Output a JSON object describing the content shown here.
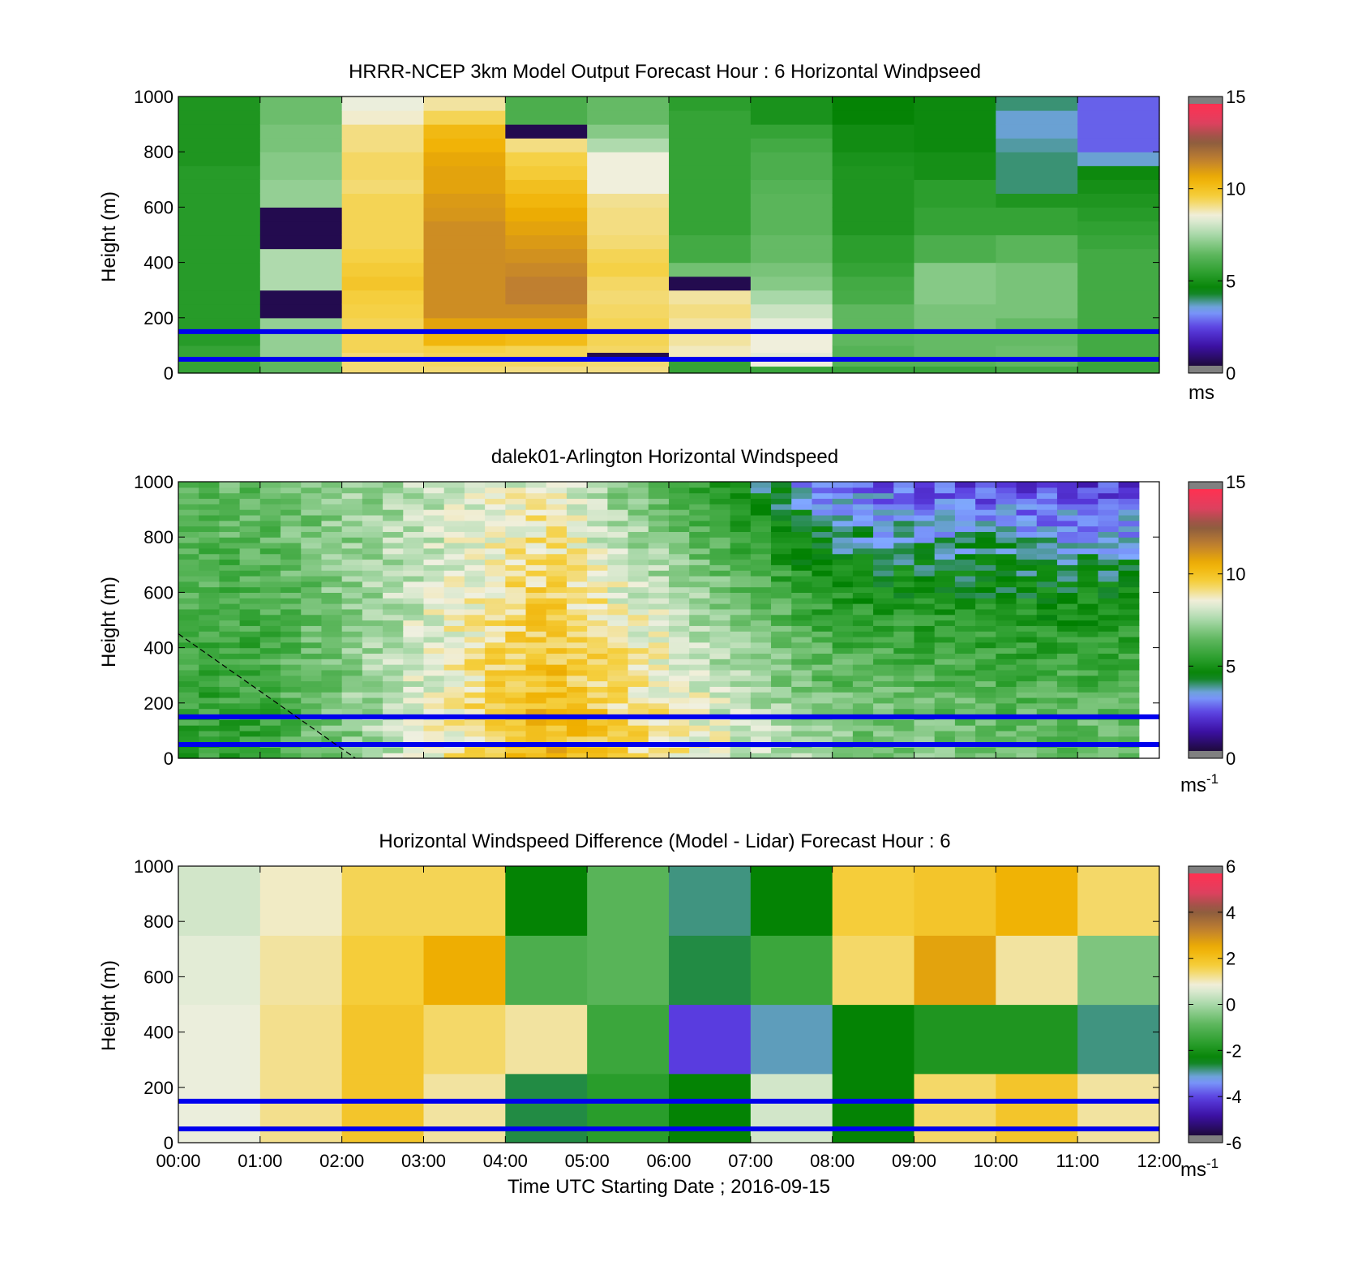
{
  "figure": {
    "xlabel": "Time UTC  Starting Date ; 2016-09-15",
    "x_tick_labels": [
      "00:00",
      "01:00",
      "02:00",
      "03:00",
      "04:00",
      "05:00",
      "06:00",
      "07:00",
      "08:00",
      "09:00",
      "10:00",
      "11:00",
      "12:00"
    ],
    "colors": {
      "reference_line": "#0000ee",
      "colormap": [
        "#1e0a3c",
        "#3a0fa0",
        "#5a3de0",
        "#80a8ff",
        "#008000",
        "#2ea030",
        "#60b860",
        "#a8d8a8",
        "#f0f0e0",
        "#f5d040",
        "#f0b000",
        "#c08030",
        "#8a5a40",
        "#e04060",
        "#ff3050"
      ]
    }
  },
  "chart_data": [
    {
      "type": "heatmap",
      "title": "HRRR-NCEP 3km Model Output   Forecast Hour : 6 Horizontal Windpseed",
      "ylabel": "Height (m)",
      "xlim": [
        "00:00",
        "12:00"
      ],
      "ylim": [
        0,
        1000
      ],
      "y_ticks": [
        0,
        200,
        400,
        600,
        800,
        1000
      ],
      "x_tick_labels_shown": false,
      "grid": false,
      "colorbar": {
        "range": [
          0,
          15
        ],
        "ticks": [
          0,
          5,
          10,
          15
        ],
        "label": "ms"
      },
      "reference_lines_height_m": [
        50,
        150
      ],
      "column_starts": [
        "00:00",
        "01:00",
        "02:00",
        "03:00",
        "04:00",
        "05:00",
        "06:00",
        "07:00",
        "08:00",
        "09:00",
        "10:00",
        "11:00"
      ],
      "height_levels_m": [
        0,
        25,
        50,
        75,
        100,
        150,
        200,
        250,
        300,
        350,
        400,
        450,
        500,
        550,
        600,
        650,
        700,
        750,
        800,
        850,
        900,
        950
      ],
      "windspeed_ms_by_hour": [
        [
          5.5,
          5.5,
          5.5,
          5.5,
          5.2,
          5.2,
          5.2,
          5.2,
          5.2,
          5.2,
          5.2,
          5.2,
          5.2,
          5.2,
          5.2,
          5.2,
          5.2,
          5.0,
          5.0,
          5.0,
          5.0,
          5.0
        ],
        [
          6.4,
          6.4,
          7.2,
          7.2,
          7.2,
          7.2,
          0.2,
          0.2,
          7.6,
          7.6,
          7.6,
          0.2,
          0.2,
          0.2,
          7.2,
          7.2,
          7.0,
          7.0,
          6.8,
          6.8,
          6.6,
          6.6
        ],
        [
          9.3,
          9.3,
          9.3,
          9.5,
          9.5,
          9.5,
          9.6,
          9.7,
          10.0,
          9.8,
          9.6,
          9.5,
          9.5,
          9.5,
          9.5,
          9.3,
          9.4,
          9.4,
          9.2,
          9.2,
          8.7,
          8.5
        ],
        [
          9.3,
          9.4,
          9.5,
          9.6,
          10.5,
          11.0,
          11.5,
          11.5,
          11.5,
          11.5,
          11.5,
          11.5,
          11.5,
          11.3,
          11.2,
          11.0,
          11.0,
          10.9,
          10.6,
          10.4,
          9.5,
          9.0
        ],
        [
          9.2,
          9.4,
          9.5,
          9.5,
          10.3,
          11.0,
          11.5,
          11.8,
          11.8,
          11.6,
          11.4,
          11.2,
          11.0,
          10.8,
          10.5,
          10.2,
          9.8,
          9.6,
          9.2,
          0.2,
          6.0,
          6.0
        ],
        [
          9.2,
          9.3,
          0.2,
          9.4,
          9.5,
          9.5,
          9.4,
          9.3,
          9.4,
          9.6,
          9.5,
          9.3,
          9.2,
          9.2,
          9.1,
          8.6,
          8.6,
          8.6,
          7.6,
          7.0,
          6.5,
          6.5
        ],
        [
          5.5,
          5.5,
          8.8,
          8.8,
          9.0,
          9.0,
          9.2,
          9.0,
          0.2,
          6.7,
          5.8,
          5.8,
          5.5,
          5.5,
          5.5,
          5.5,
          5.5,
          5.5,
          5.5,
          5.5,
          5.5,
          5.3
        ],
        [
          5.6,
          8.6,
          8.4,
          8.6,
          8.6,
          8.4,
          8.0,
          7.5,
          7.0,
          6.8,
          6.5,
          6.5,
          6.3,
          6.3,
          6.3,
          6.2,
          6.0,
          6.0,
          5.8,
          5.5,
          4.9,
          4.9
        ],
        [
          5.6,
          6.2,
          6.2,
          6.2,
          6.4,
          6.4,
          6.4,
          5.9,
          5.8,
          5.5,
          5.3,
          5.3,
          5.0,
          5.0,
          5.0,
          5.0,
          5.0,
          4.9,
          4.7,
          4.7,
          4.4,
          4.4
        ],
        [
          5.6,
          6.2,
          6.5,
          6.5,
          6.5,
          6.8,
          6.8,
          7.0,
          7.0,
          7.0,
          6.0,
          6.0,
          5.5,
          5.5,
          5.3,
          5.3,
          4.8,
          4.8,
          4.6,
          4.6,
          4.6,
          4.6
        ],
        [
          5.8,
          6.4,
          6.6,
          6.6,
          6.5,
          6.5,
          6.8,
          6.8,
          6.8,
          6.8,
          6.3,
          6.3,
          5.5,
          5.5,
          5.0,
          3.8,
          3.8,
          3.8,
          3.6,
          3.4,
          3.4,
          3.8
        ],
        [
          5.6,
          5.6,
          5.8,
          5.8,
          5.8,
          5.8,
          5.8,
          5.8,
          5.8,
          5.8,
          5.8,
          5.6,
          5.4,
          5.2,
          5.0,
          4.8,
          4.6,
          3.4,
          2.5,
          2.5,
          2.5,
          2.5
        ]
      ]
    },
    {
      "type": "heatmap",
      "title": "dalek01-Arlington  Horizontal Windspeed",
      "ylabel": "Height (m)",
      "xlim": [
        "00:00",
        "12:00"
      ],
      "ylim": [
        0,
        1000
      ],
      "y_ticks": [
        0,
        200,
        400,
        600,
        800,
        1000
      ],
      "x_tick_labels_shown": false,
      "grid": false,
      "colorbar": {
        "range": [
          0,
          15
        ],
        "ticks": [
          0,
          5,
          10,
          15
        ],
        "label": "ms",
        "label_exponent": "-1"
      },
      "reference_lines_height_m": [
        50,
        150
      ],
      "annotation": "dashed diagonal line from about 450 m at 00:00 to 0 m at about 02:10",
      "annotation_line": [
        [
          "00:00",
          450
        ],
        [
          "02:10",
          0
        ]
      ],
      "sampling": "lidar profiles every 15 minutes from 00:00 to about 11:45, plotted as fine vertical columns",
      "regime_summary": [
        {
          "from": "00:00",
          "to": "02:00",
          "lower_ms": 5.5,
          "upper_ms": 6.5
        },
        {
          "from": "02:00",
          "to": "07:00",
          "lower_ms": 10.5,
          "upper_ms": 8.5
        },
        {
          "from": "07:00",
          "to": "09:00",
          "lower_ms": 7.0,
          "upper_ms": 2.5
        },
        {
          "from": "09:00",
          "to": "11:45",
          "lower_ms": 6.5,
          "upper_ms": 2.0
        }
      ]
    },
    {
      "type": "heatmap",
      "title": "Horizontal Windspeed Difference (Model - Lidar) Forecast Hour : 6",
      "ylabel": "Height (m)",
      "xlabel": "Time UTC  Starting Date ; 2016-09-15",
      "xlim": [
        "00:00",
        "12:00"
      ],
      "ylim": [
        0,
        1000
      ],
      "y_ticks": [
        0,
        200,
        400,
        600,
        800,
        1000
      ],
      "x_tick_labels_shown": true,
      "grid": false,
      "colorbar": {
        "range": [
          -6,
          6
        ],
        "ticks": [
          -6,
          -4,
          -2,
          0,
          2,
          4,
          6
        ],
        "label": "ms",
        "label_exponent": "-1"
      },
      "reference_lines_height_m": [
        50,
        150
      ],
      "column_starts": [
        "00:00",
        "01:00",
        "02:00",
        "03:00",
        "04:00",
        "05:00",
        "06:00",
        "07:00",
        "08:00",
        "09:00",
        "10:00",
        "11:00"
      ],
      "difference_ms_by_hour": [
        [
          0.8,
          0.8,
          0.7,
          0.5
        ],
        [
          1.3,
          1.3,
          1.2,
          1.0
        ],
        [
          2.0,
          2.0,
          1.8,
          1.6
        ],
        [
          1.2,
          1.5,
          2.6,
          1.6
        ],
        [
          -2.8,
          1.2,
          -1.2,
          -2.5
        ],
        [
          -1.8,
          -1.5,
          -1.0,
          -1.0
        ],
        [
          -2.5,
          -4.3,
          -2.8,
          -3.0
        ],
        [
          0.5,
          -3.2,
          -1.5,
          -2.5
        ],
        [
          -2.5,
          -2.5,
          1.5,
          1.8
        ],
        [
          1.5,
          -2.0,
          2.8,
          2.0
        ],
        [
          2.0,
          -2.0,
          1.2,
          2.5
        ],
        [
          1.2,
          -3.0,
          -0.5,
          1.5
        ]
      ],
      "difference_height_bands_m": [
        [
          0,
          250
        ],
        [
          250,
          500
        ],
        [
          500,
          750
        ],
        [
          750,
          1000
        ]
      ]
    }
  ]
}
